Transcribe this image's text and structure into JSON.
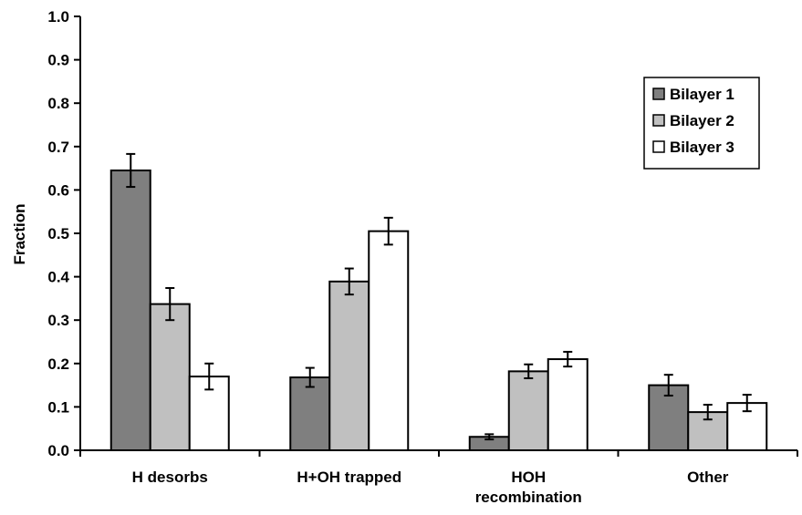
{
  "chart_data": {
    "type": "bar",
    "title": "",
    "xlabel": "",
    "ylabel": "Fraction",
    "ylim": [
      0,
      1.0
    ],
    "yticks": [
      "0.0",
      "0.1",
      "0.2",
      "0.3",
      "0.4",
      "0.5",
      "0.6",
      "0.7",
      "0.8",
      "0.9",
      "1.0"
    ],
    "categories": [
      [
        "H desorbs"
      ],
      [
        "H+OH trapped"
      ],
      [
        "HOH",
        "recombination"
      ],
      [
        "Other"
      ]
    ],
    "series": [
      {
        "name": "Bilayer 1",
        "color": "#7f7f7f",
        "values": [
          0.645,
          0.168,
          0.031,
          0.15
        ],
        "errors": [
          0.038,
          0.022,
          0.006,
          0.024
        ]
      },
      {
        "name": "Bilayer 2",
        "color": "#c0c0c0",
        "values": [
          0.337,
          0.389,
          0.182,
          0.088
        ],
        "errors": [
          0.037,
          0.03,
          0.016,
          0.017
        ]
      },
      {
        "name": "Bilayer 3",
        "color": "#ffffff",
        "values": [
          0.17,
          0.505,
          0.21,
          0.109
        ],
        "errors": [
          0.03,
          0.031,
          0.017,
          0.019
        ]
      }
    ],
    "legend_position": "top-right",
    "grid": false
  }
}
